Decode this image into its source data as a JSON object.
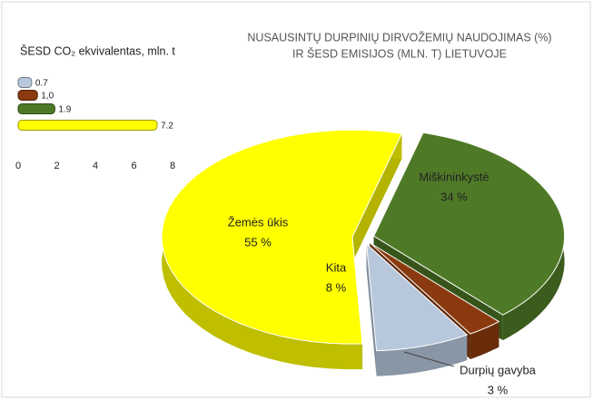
{
  "chart_data": [
    {
      "type": "pie",
      "title": [
        "NUSAUSINTŲ DURPINIŲ  DIRVOŽEMIŲ NAUDOJIMAS (%)",
        "IR ŠESD EMISIJOS (MLN. T) LIETUVOJE"
      ],
      "categories": [
        "Miškininkystė",
        "Durpių gavyba",
        "Kita",
        "Žemės ūkis"
      ],
      "values": [
        34,
        3,
        8,
        55
      ],
      "value_labels": [
        "34 %",
        "3 %",
        "8 %",
        "55 %"
      ],
      "colors": [
        "#4e7a27",
        "#8a3a0e",
        "#b7c8dc",
        "#ffff00"
      ]
    },
    {
      "type": "hbar",
      "title": "ŠESD CO₂ ekvivalentas, mln. t",
      "values": [
        0.7,
        1.0,
        1.9,
        7.2
      ],
      "value_labels": [
        "0.7",
        "1,0",
        "1.9",
        "7.2"
      ],
      "colors": [
        "#b7c8dc",
        "#8a3a0e",
        "#4e7a27",
        "#ffff00"
      ],
      "xlim": [
        0,
        8
      ],
      "xticks": [
        0,
        2,
        4,
        6,
        8
      ]
    }
  ]
}
